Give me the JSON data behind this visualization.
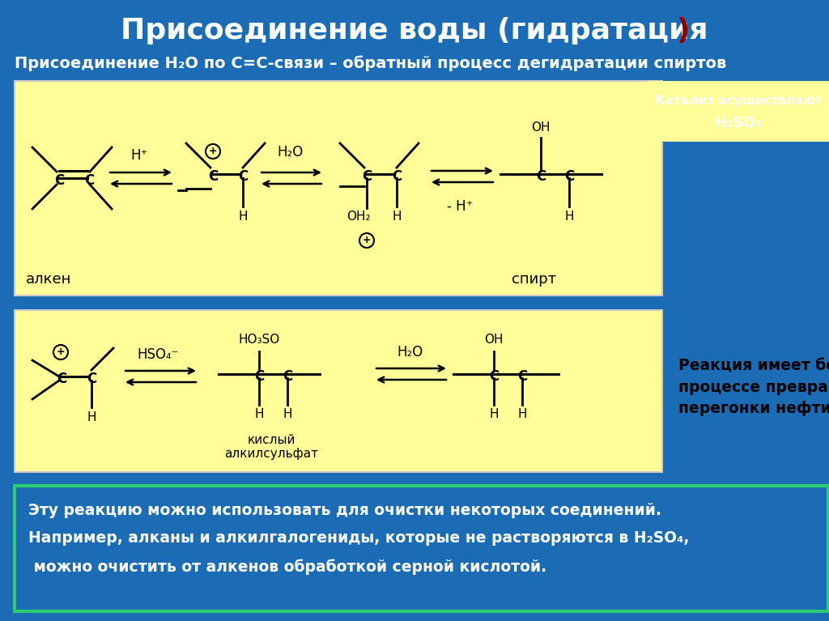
{
  "bg_color": "#1B6BB5",
  "yellow_bg": "#FFFE99",
  "title_part1": "Присоединение воды (гидратация",
  "title_paren": ")",
  "subtitle": "Присоединение Н₂О по С=С-связи – обратный процесс дегидратации спиртов",
  "label_alkene": "алкен",
  "label_spirit": "спирт",
  "catalyst_line1": "Катализ осуществляют",
  "catalyst_line2": "Н₂SO₄",
  "h_plus": "H⁺",
  "h2o": "H₂O",
  "minus_hplus": "- H⁺",
  "oh": "OH",
  "oh2": "OH₂",
  "hso4": "HSO₄⁻",
  "ho3so": "HO₃SO",
  "label_kislyi": "кислый\nалкилсульфат",
  "reaction_text": "Реакция имеет большое значение в\nпроцессе превращения продуктов\nперегонки нефти в спирты",
  "bottom1": "Эту реакцию можно использовать для очистки некоторых соединений.",
  "bottom2": "Например, алканы и алкилгалогениды, которые не растворяются в Н₂SO₄,",
  "bottom3": " можно очистить от алкенов обработкой серной кислотой.",
  "black": "#000000",
  "white": "#FFFFFF",
  "darkred": "#8B0000",
  "green_border": "#2ECC71"
}
